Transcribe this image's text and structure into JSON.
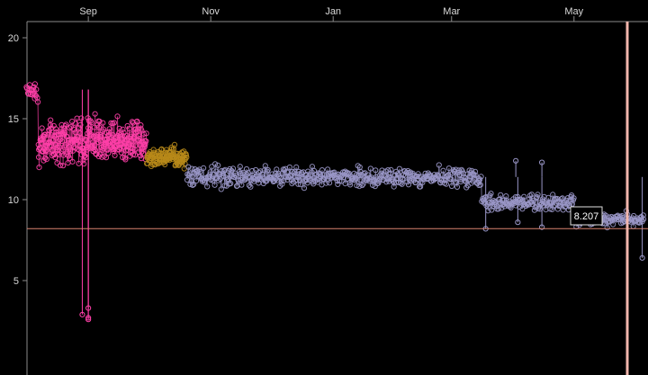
{
  "chart_data": {
    "type": "scatter",
    "title": "",
    "xlabel": "",
    "ylabel": "",
    "x_ticks": [
      "Sep",
      "Nov",
      "Jan",
      "Mar",
      "May"
    ],
    "y_ticks": [
      "5",
      "10",
      "15",
      "20"
    ],
    "ylim": [
      0,
      21
    ],
    "grid": false,
    "legend": "none",
    "cursor_readout": "8.207",
    "reference_value": 8.207,
    "colors": {
      "background": "#000000",
      "axis": "#8a8a8a",
      "reference_line": "#d9826f",
      "cursor_line": "#f2b6ad"
    },
    "series": [
      {
        "color": "#ff3fa8",
        "segments": [
          {
            "start": "Aug 1",
            "end": "Aug 7",
            "mean": 16.8,
            "spread": 1.3,
            "density": 3
          },
          {
            "start": "Aug 7",
            "end": "Sep 30",
            "mean": 13.6,
            "spread": 1.9,
            "density": 6
          }
        ],
        "outliers": [
          {
            "date": "Aug 29",
            "value": 2.9
          },
          {
            "date": "Sep 1",
            "value": 2.7
          },
          {
            "date": "Sep 1",
            "value": 3.3
          },
          {
            "date": "Sep 1",
            "value": 2.6
          }
        ]
      },
      {
        "color": "#b8891a",
        "segments": [
          {
            "start": "Sep 30",
            "end": "Oct 20",
            "mean": 12.6,
            "spread": 0.9,
            "density": 6
          }
        ],
        "outliers": []
      },
      {
        "color": "#9a97c8",
        "segments": [
          {
            "start": "Oct 20",
            "end": "Mar 16",
            "mean": 11.4,
            "spread": 0.9,
            "density": 3
          },
          {
            "start": "Mar 16",
            "end": "May 1",
            "mean": 9.8,
            "spread": 0.7,
            "density": 3
          },
          {
            "start": "May 1",
            "end": "Jun 5",
            "mean": 8.8,
            "spread": 0.6,
            "density": 3
          }
        ],
        "outliers": [
          {
            "date": "Mar 18",
            "value": 8.2
          },
          {
            "date": "Apr 2",
            "value": 12.4
          },
          {
            "date": "Apr 3",
            "value": 8.6
          },
          {
            "date": "Apr 15",
            "value": 12.3
          },
          {
            "date": "Apr 15",
            "value": 8.3
          },
          {
            "date": "Jun 4",
            "value": 6.4
          }
        ]
      }
    ]
  }
}
